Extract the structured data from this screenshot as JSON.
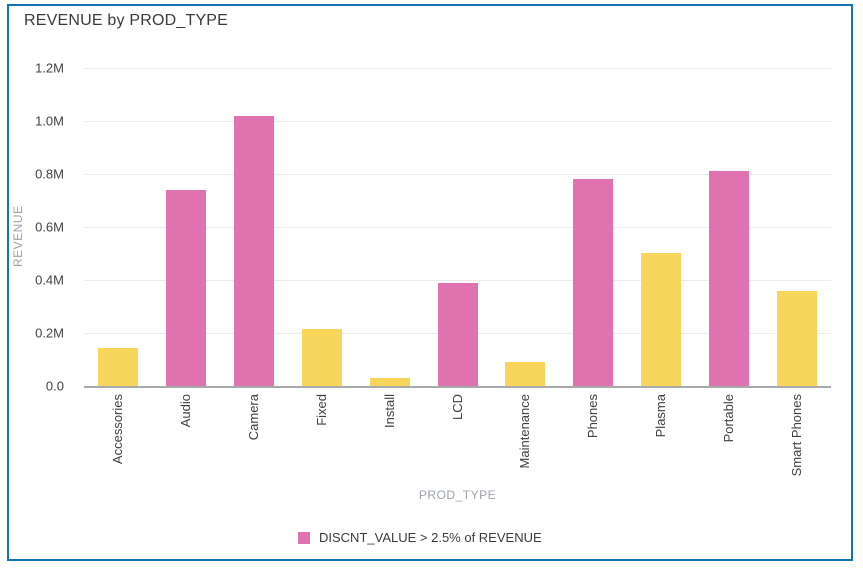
{
  "card": {
    "border_color": "#1273b5"
  },
  "chart_data": {
    "type": "bar",
    "title": "REVENUE by PROD_TYPE",
    "xlabel": "PROD_TYPE",
    "ylabel": "REVENUE",
    "unit": "millions",
    "ylim": [
      0,
      1.2
    ],
    "grid": true,
    "yticks": [
      {
        "value": 0.0,
        "label": "0.0"
      },
      {
        "value": 0.2,
        "label": "0.2M"
      },
      {
        "value": 0.4,
        "label": "0.4M"
      },
      {
        "value": 0.6,
        "label": "0.6M"
      },
      {
        "value": 0.8,
        "label": "0.8M"
      },
      {
        "value": 1.0,
        "label": "1.0M"
      },
      {
        "value": 1.2,
        "label": "1.2M"
      }
    ],
    "categories": [
      "Accessories",
      "Audio",
      "Camera",
      "Fixed",
      "Install",
      "LCD",
      "Maintenance",
      "Phones",
      "Plasma",
      "Portable",
      "Smart Phones"
    ],
    "values_millions": [
      0.145,
      0.74,
      1.02,
      0.215,
      0.03,
      0.39,
      0.09,
      0.78,
      0.5,
      0.81,
      0.36
    ],
    "highlighted": [
      false,
      true,
      true,
      false,
      false,
      true,
      false,
      true,
      false,
      true,
      false
    ],
    "colors": {
      "highlight": "#e072b1",
      "normal": "#f8d65c"
    },
    "legend": {
      "position": "bottom",
      "label": "DISCNT_VALUE > 2.5% of REVENUE",
      "swatch_color": "#e072b1"
    }
  }
}
